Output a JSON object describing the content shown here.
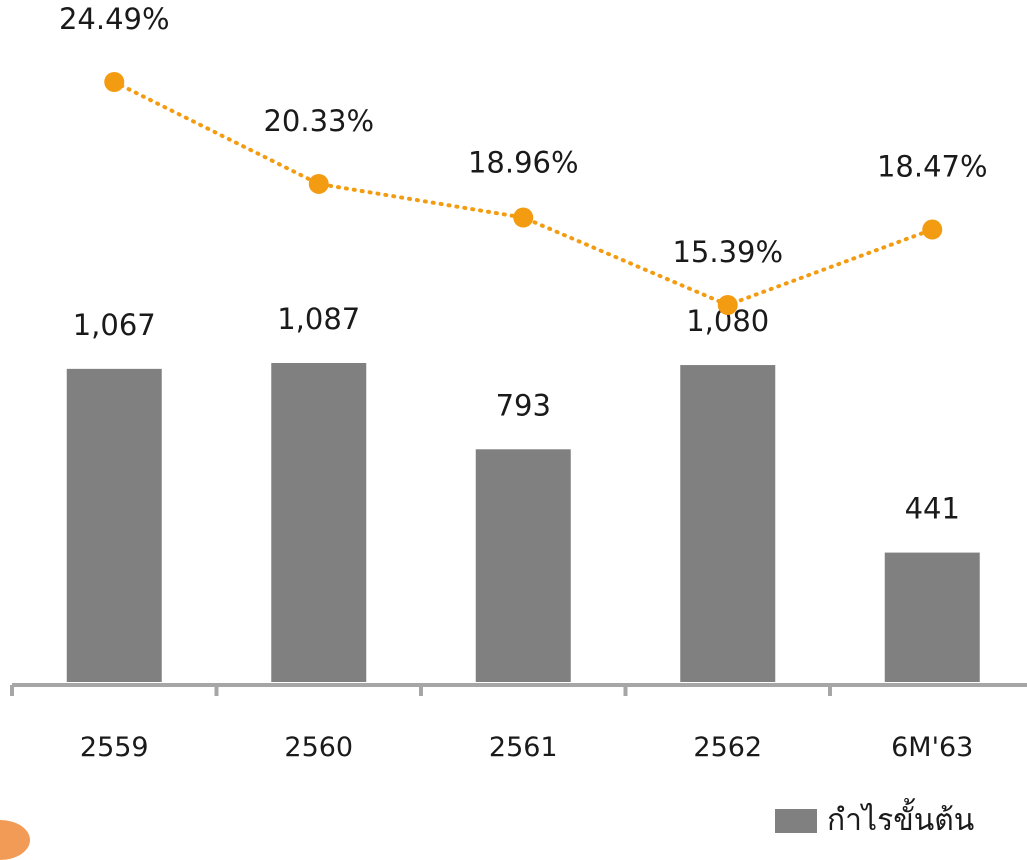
{
  "chart_data": {
    "type": "bar",
    "categories": [
      "2559",
      "2560",
      "2561",
      "2562",
      "6M'63"
    ],
    "series": [
      {
        "name": "กำไรขั้นต้น",
        "type": "bar",
        "values": [
          1067,
          1087,
          793,
          1080,
          441
        ],
        "value_labels": [
          "1,067",
          "1,087",
          "793",
          "1,080",
          "441"
        ],
        "color": "#808080"
      },
      {
        "type": "line",
        "style": "dotted",
        "values": [
          24.49,
          20.33,
          18.96,
          15.39,
          18.47
        ],
        "value_labels": [
          "24.49%",
          "20.33%",
          "18.96%",
          "15.39%",
          "18.47%"
        ],
        "color": "#f39c12"
      }
    ],
    "ylim_bar": [
      0,
      1100
    ],
    "ylim_line": [
      12,
      27
    ],
    "grid": false,
    "legend": "bottom-right"
  },
  "legend": {
    "label": "กำไรขั้นต้น",
    "color": "#808080"
  },
  "colors": {
    "axis": "#a6a6a6",
    "text": "#1a1a1a",
    "accent": "#f39c12"
  }
}
